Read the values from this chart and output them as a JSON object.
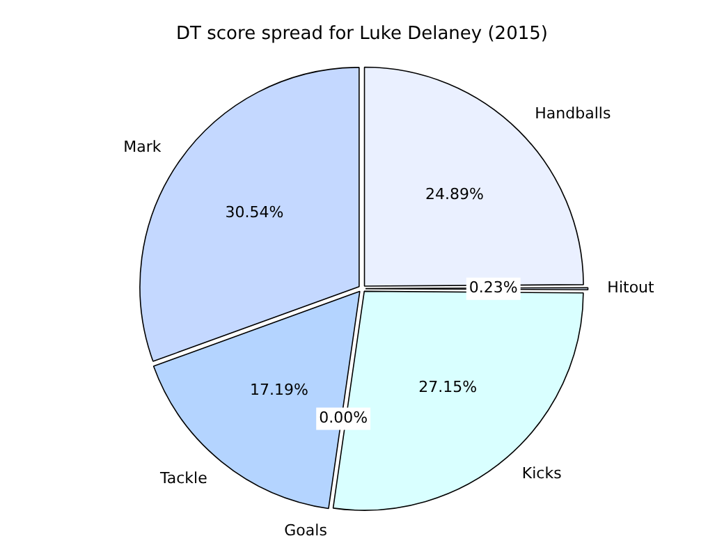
{
  "chart_data": {
    "type": "pie",
    "title": "DT score spread for Luke Delaney (2015)",
    "categories": [
      "Handballs",
      "Hitout",
      "Kicks",
      "Goals",
      "Tackle",
      "Mark"
    ],
    "values": [
      24.89,
      0.23,
      27.15,
      0.0,
      17.19,
      30.54
    ],
    "value_labels": [
      "24.89%",
      "0.23%",
      "27.15%",
      "0.00%",
      "17.19%",
      "30.54%"
    ],
    "colors": [
      "#eaf0ff",
      "#e0ecff",
      "#d9ffff",
      "#c8e0ff",
      "#b4d4ff",
      "#c4d8ff"
    ],
    "legend": false
  }
}
